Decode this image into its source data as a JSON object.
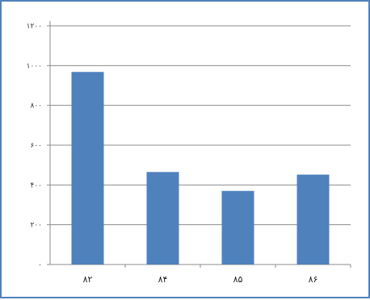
{
  "chart_data": {
    "type": "bar",
    "categories": [
      "۸۲",
      "۸۴",
      "۸۵",
      "۸۶"
    ],
    "values": [
      968,
      465,
      370,
      452
    ],
    "ylim": [
      0,
      1200
    ],
    "yticks": [
      0,
      200,
      400,
      600,
      800,
      1000,
      1200
    ],
    "ytick_labels": [
      "۰",
      "۲۰۰",
      "۴۰۰",
      "۶۰۰",
      "۸۰۰",
      "۱۰۰۰",
      "۱۲۰۰"
    ],
    "title": "",
    "xlabel": "",
    "ylabel": "",
    "grid": true,
    "legend": "none",
    "bar_color": "#4f81bd",
    "grid_color": "#8c8c8c",
    "frame_color": "#4f81bd"
  }
}
